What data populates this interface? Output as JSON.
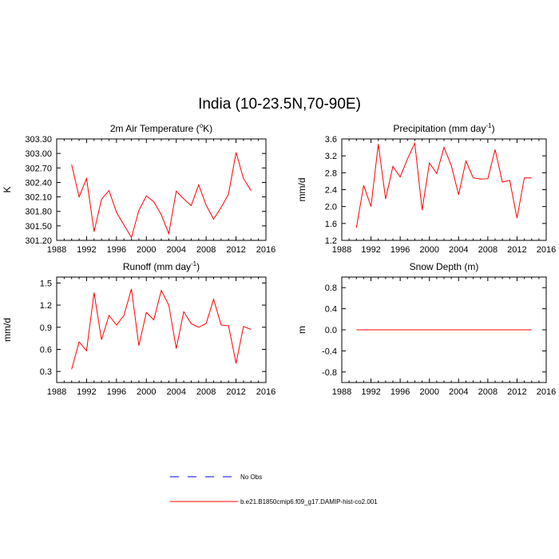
{
  "title": "India (10-23.5N,70-90E)",
  "colors": {
    "model": "#ff0000",
    "obs": "#0000ff",
    "axis": "#000000"
  },
  "legend": {
    "obs_label": "No Obs",
    "model_label": "b.e21.B1850cmip6.f09_g17.DAMIP-hist-co2.001"
  },
  "chart_data": [
    {
      "id": "temp",
      "type": "line",
      "title": "2m Air Temperature (",
      "title_sup": "o",
      "title_after": "K)",
      "ylabel": "K",
      "xlim": [
        1988,
        2016
      ],
      "ylim": [
        301.2,
        303.3
      ],
      "yticks": [
        301.2,
        301.5,
        301.8,
        302.1,
        302.4,
        302.7,
        303.0,
        303.3
      ],
      "ytick_labels": [
        "301.20",
        "301.50",
        "301.80",
        "302.10",
        "302.40",
        "302.70",
        "303.00",
        "303.30"
      ],
      "xticks": [
        1988,
        1992,
        1996,
        2000,
        2004,
        2008,
        2012,
        2016
      ],
      "x": [
        1990,
        1991,
        1992,
        1993,
        1994,
        1995,
        1996,
        1997,
        1998,
        1999,
        2000,
        2001,
        2002,
        2003,
        2004,
        2005,
        2006,
        2007,
        2008,
        2009,
        2010,
        2011,
        2012,
        2013,
        2014
      ],
      "series": [
        {
          "values": [
            302.77,
            302.1,
            302.48,
            301.38,
            302.05,
            302.23,
            301.78,
            301.52,
            301.26,
            301.82,
            302.12,
            302.0,
            301.73,
            301.34,
            302.22,
            302.06,
            301.92,
            302.35,
            301.93,
            301.64,
            301.88,
            302.16,
            303.02,
            302.48,
            302.23
          ]
        }
      ]
    },
    {
      "id": "precip",
      "type": "line",
      "title": "Precipitation (mm day",
      "title_sup": "-1",
      "title_after": ")",
      "ylabel": "mm/d",
      "xlim": [
        1988,
        2016
      ],
      "ylim": [
        1.2,
        3.6
      ],
      "yticks": [
        1.2,
        1.6,
        2.0,
        2.4,
        2.8,
        3.2,
        3.6
      ],
      "ytick_labels": [
        "1.2",
        "1.6",
        "2.0",
        "2.4",
        "2.8",
        "3.2",
        "3.6"
      ],
      "xticks": [
        1988,
        1992,
        1996,
        2000,
        2004,
        2008,
        2012,
        2016
      ],
      "x": [
        1990,
        1991,
        1992,
        1993,
        1994,
        1995,
        1996,
        1997,
        1998,
        1999,
        2000,
        2001,
        2002,
        2003,
        2004,
        2005,
        2006,
        2007,
        2008,
        2009,
        2010,
        2011,
        2012,
        2013,
        2014
      ],
      "series": [
        {
          "values": [
            1.5,
            2.5,
            2.0,
            3.48,
            2.18,
            2.95,
            2.7,
            3.13,
            3.5,
            1.92,
            3.03,
            2.78,
            3.4,
            2.97,
            2.28,
            3.08,
            2.68,
            2.65,
            2.66,
            3.35,
            2.58,
            2.62,
            1.73,
            2.68,
            2.68
          ]
        }
      ]
    },
    {
      "id": "runoff",
      "type": "line",
      "title": "Runoff (mm day",
      "title_sup": "-1",
      "title_after": ")",
      "ylabel": "mm/d",
      "xlim": [
        1988,
        2016
      ],
      "ylim": [
        0.15,
        1.58
      ],
      "yticks": [
        0.3,
        0.6,
        0.9,
        1.2,
        1.5
      ],
      "ytick_labels": [
        "0.3",
        "0.6",
        "0.9",
        "1.2",
        "1.5"
      ],
      "xticks": [
        1988,
        1992,
        1996,
        2000,
        2004,
        2008,
        2012,
        2016
      ],
      "x": [
        1990,
        1991,
        1992,
        1993,
        1994,
        1995,
        1996,
        1997,
        1998,
        1999,
        2000,
        2001,
        2002,
        2003,
        2004,
        2005,
        2006,
        2007,
        2008,
        2009,
        2010,
        2011,
        2012,
        2013,
        2014
      ],
      "series": [
        {
          "values": [
            0.33,
            0.7,
            0.58,
            1.37,
            0.73,
            1.06,
            0.93,
            1.06,
            1.42,
            0.65,
            1.1,
            1.0,
            1.4,
            1.2,
            0.61,
            1.11,
            0.95,
            0.9,
            0.95,
            1.28,
            0.93,
            0.92,
            0.41,
            0.91,
            0.87
          ]
        }
      ]
    },
    {
      "id": "snow",
      "type": "line",
      "title": "Snow Depth (m)",
      "title_sup": "",
      "title_after": "",
      "ylabel": "m",
      "xlim": [
        1988,
        2016
      ],
      "ylim": [
        -1.0,
        1.0
      ],
      "yticks": [
        -0.8,
        -0.4,
        0.0,
        0.4,
        0.8
      ],
      "ytick_labels": [
        "-0.8",
        "-0.4",
        "0.0",
        "0.4",
        "0.8"
      ],
      "xticks": [
        1988,
        1992,
        1996,
        2000,
        2004,
        2008,
        2012,
        2016
      ],
      "x": [
        1990,
        1991,
        1992,
        1993,
        1994,
        1995,
        1996,
        1997,
        1998,
        1999,
        2000,
        2001,
        2002,
        2003,
        2004,
        2005,
        2006,
        2007,
        2008,
        2009,
        2010,
        2011,
        2012,
        2013,
        2014
      ],
      "series": [
        {
          "values": [
            0,
            0,
            0,
            0,
            0,
            0,
            0,
            0,
            0,
            0,
            0,
            0,
            0,
            0,
            0,
            0,
            0,
            0,
            0,
            0,
            0,
            0,
            0,
            0,
            0
          ]
        }
      ]
    }
  ]
}
